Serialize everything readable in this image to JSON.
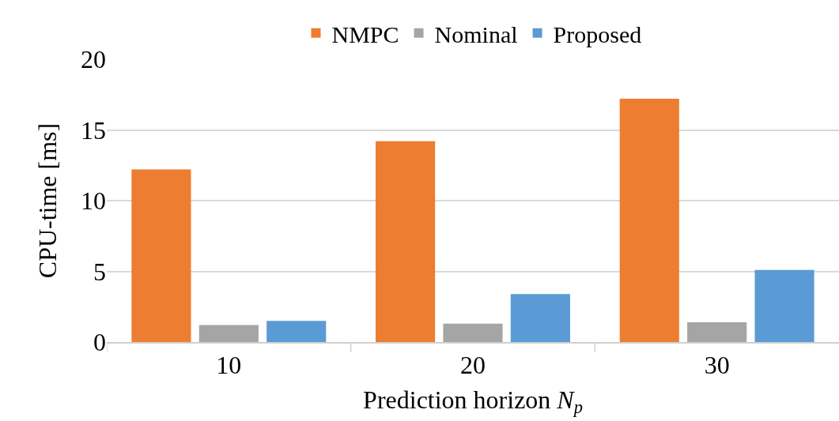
{
  "chart_data": {
    "type": "bar",
    "categories": [
      "10",
      "20",
      "30"
    ],
    "xlabel": "Prediction horizon N$_{p}$",
    "ylabel": "CPU-time [ms]",
    "series": [
      {
        "name": "NMPC",
        "color": "#ed7d31",
        "values": [
          12.2,
          14.2,
          17.2
        ]
      },
      {
        "name": "Nominal",
        "color": "#a5a5a5",
        "values": [
          1.2,
          1.3,
          1.4
        ]
      },
      {
        "name": "Proposed",
        "color": "#5b9bd5",
        "values": [
          1.5,
          3.4,
          5.1
        ]
      }
    ],
    "ylim": [
      0,
      20
    ],
    "yticks": [
      0,
      5,
      10,
      15,
      20
    ],
    "grid": "y",
    "legend": "top"
  }
}
